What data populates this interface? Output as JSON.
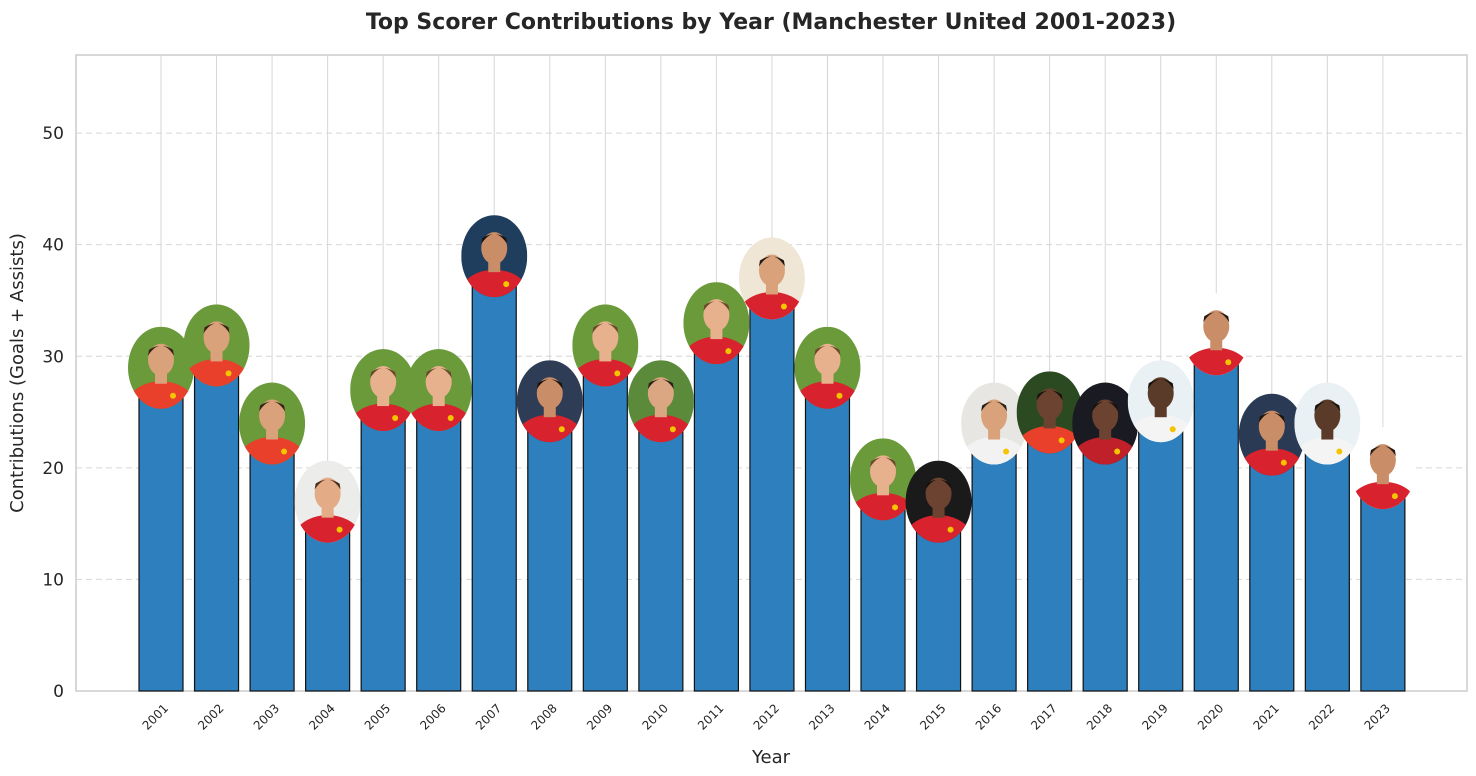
{
  "chart_data": {
    "type": "bar",
    "title": "Top Scorer Contributions by Year (Manchester United 2001-2023)",
    "xlabel": "Year",
    "ylabel": "Contributions (Goals + Assists)",
    "categories": [
      "2001",
      "2002",
      "2003",
      "2004",
      "2005",
      "2006",
      "2007",
      "2008",
      "2009",
      "2010",
      "2011",
      "2012",
      "2013",
      "2014",
      "2015",
      "2016",
      "2017",
      "2018",
      "2019",
      "2020",
      "2021",
      "2022",
      "2023"
    ],
    "values": [
      27,
      29,
      22,
      15,
      25,
      25,
      37,
      24,
      29,
      24,
      31,
      35,
      27,
      17,
      15,
      22,
      23,
      22,
      24,
      30,
      21,
      22,
      18
    ],
    "ylim": [
      0,
      57
    ],
    "yticks": [
      "0",
      "10",
      "20",
      "30",
      "40",
      "50"
    ],
    "grid": true,
    "bar_color": "#2e7fbd",
    "player_photos": [
      "photo-2001",
      "photo-2002",
      "photo-2003",
      "photo-2004",
      "photo-2005",
      "photo-2006",
      "photo-2007",
      "photo-2008",
      "photo-2009",
      "photo-2010",
      "photo-2011",
      "photo-2012",
      "photo-2013",
      "photo-2014",
      "photo-2015",
      "photo-2016",
      "photo-2017",
      "photo-2018",
      "photo-2019",
      "photo-2020",
      "photo-2021",
      "photo-2022",
      "photo-2023"
    ]
  }
}
